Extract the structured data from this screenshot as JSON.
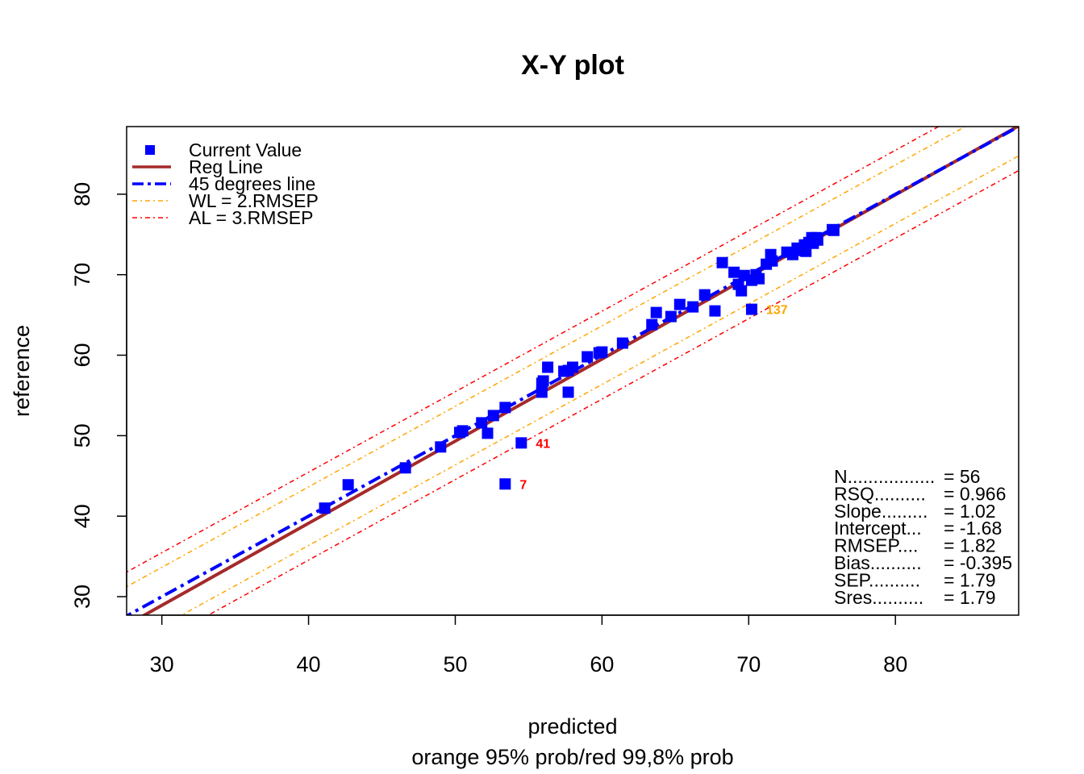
{
  "chart_data": {
    "type": "scatter",
    "title": "X-Y plot",
    "xlabel": "predicted",
    "xlabel_sub": "orange 95% prob/red 99,8% prob",
    "ylabel": "reference",
    "xlim": [
      27.6,
      88.4
    ],
    "ylim": [
      27.7,
      88.4
    ],
    "xticks": [
      30,
      40,
      50,
      60,
      70,
      80
    ],
    "yticks": [
      30,
      40,
      50,
      60,
      70,
      80
    ],
    "grid": false,
    "legend": {
      "position": "top-left",
      "entries": [
        {
          "label": "Current Value",
          "kind": "marker",
          "color": "#0000ff"
        },
        {
          "label": "Reg Line",
          "kind": "line",
          "color": "#a52a2a"
        },
        {
          "label": "45 degrees line",
          "kind": "dashdot",
          "color": "#0000ff"
        },
        {
          "label": "WL = 2.RMSEP",
          "kind": "dashdot-thin",
          "color": "#ffa500"
        },
        {
          "label": "AL = 3.RMSEP",
          "kind": "dashdot-thin",
          "color": "#ff0000"
        }
      ]
    },
    "series": [
      {
        "name": "Current Value",
        "color": "#0000ff",
        "points": [
          [
            41.1,
            41.0
          ],
          [
            42.7,
            43.9
          ],
          [
            46.6,
            46.0
          ],
          [
            49.0,
            48.6
          ],
          [
            50.3,
            50.4
          ],
          [
            50.5,
            50.6
          ],
          [
            51.8,
            51.6
          ],
          [
            52.2,
            50.3
          ],
          [
            52.6,
            52.5
          ],
          [
            53.4,
            53.5
          ],
          [
            53.4,
            44.0
          ],
          [
            54.5,
            49.1
          ],
          [
            55.9,
            55.4
          ],
          [
            55.9,
            56.5
          ],
          [
            56.0,
            56.8
          ],
          [
            56.3,
            58.5
          ],
          [
            57.4,
            58.0
          ],
          [
            57.7,
            55.4
          ],
          [
            57.7,
            58.1
          ],
          [
            58.0,
            58.5
          ],
          [
            59.0,
            59.8
          ],
          [
            59.8,
            60.3
          ],
          [
            60.0,
            60.4
          ],
          [
            61.4,
            61.5
          ],
          [
            63.4,
            63.8
          ],
          [
            63.7,
            65.3
          ],
          [
            64.7,
            64.8
          ],
          [
            65.3,
            66.3
          ],
          [
            66.2,
            66.0
          ],
          [
            67.0,
            67.5
          ],
          [
            67.7,
            65.5
          ],
          [
            68.2,
            71.5
          ],
          [
            69.0,
            70.3
          ],
          [
            69.3,
            68.8
          ],
          [
            69.5,
            68.0
          ],
          [
            69.7,
            69.9
          ],
          [
            70.2,
            65.7
          ],
          [
            70.2,
            69.3
          ],
          [
            70.5,
            70.0
          ],
          [
            70.7,
            69.5
          ],
          [
            71.2,
            71.3
          ],
          [
            71.5,
            72.5
          ],
          [
            71.6,
            71.7
          ],
          [
            72.6,
            72.8
          ],
          [
            73.0,
            72.5
          ],
          [
            73.3,
            73.3
          ],
          [
            73.5,
            73.0
          ],
          [
            73.8,
            73.7
          ],
          [
            73.9,
            72.9
          ],
          [
            74.1,
            74.0
          ],
          [
            74.3,
            74.6
          ],
          [
            74.4,
            73.9
          ],
          [
            74.6,
            74.6
          ],
          [
            74.7,
            74.3
          ],
          [
            75.7,
            75.6
          ],
          [
            75.8,
            75.5
          ]
        ]
      }
    ],
    "lines": {
      "reg_line": {
        "slope": 1.02,
        "intercept": -1.68,
        "color": "#a52a2a"
      },
      "deg45_line": {
        "slope": 1,
        "intercept": 0,
        "color": "#0000ff"
      },
      "wl_offset": 3.64,
      "al_offset": 5.46
    },
    "annotations": [
      {
        "label": "137",
        "x": 70.2,
        "y": 65.7,
        "color": "#ffa500"
      },
      {
        "label": "41",
        "x": 54.5,
        "y": 49.1,
        "color": "#ff0000"
      },
      {
        "label": "7",
        "x": 53.4,
        "y": 44.0,
        "color": "#ff0000"
      }
    ],
    "stats": [
      {
        "label": "N.................",
        "value": "= 56"
      },
      {
        "label": "RSQ..........",
        "value": "= 0.966"
      },
      {
        "label": "Slope.........",
        "value": "= 1.02"
      },
      {
        "label": "Intercept...",
        "value": "= -1.68"
      },
      {
        "label": "RMSEP....",
        "value": "= 1.82"
      },
      {
        "label": "Bias..........",
        "value": "= -0.395"
      },
      {
        "label": "SEP..........",
        "value": "= 1.79"
      },
      {
        "label": "Sres..........",
        "value": "= 1.79"
      }
    ]
  }
}
